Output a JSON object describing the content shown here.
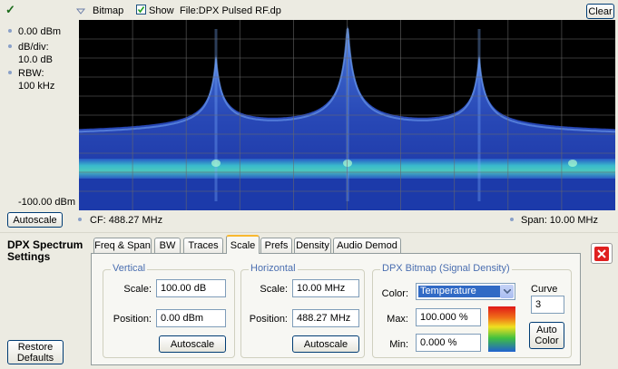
{
  "toolbar": {
    "check": "✓",
    "trace_menu": "Bitmap",
    "show": "Show",
    "file": "File:DPX Pulsed RF.dp",
    "clear": "Clear"
  },
  "display": {
    "ref_level": "0.00 dBm",
    "db_div_label": "dB/div:",
    "db_div": "10.0 dB",
    "rbw_label": "RBW:",
    "rbw": "100 kHz",
    "bottom_level": "-100.00 dBm",
    "autoscale": "Autoscale",
    "cf": "CF: 488.27 MHz",
    "span": "Span: 10.00 MHz"
  },
  "settings": {
    "title": "DPX Spectrum Settings",
    "tabs": [
      "Freq & Span",
      "BW",
      "Traces",
      "Scale",
      "Prefs",
      "Density",
      "Audio Demod"
    ],
    "restore": "Restore Defaults",
    "vertical": {
      "title": "Vertical",
      "scale_label": "Scale:",
      "scale": "100.00 dB",
      "position_label": "Position:",
      "position": "0.00 dBm",
      "autoscale": "Autoscale"
    },
    "horizontal": {
      "title": "Horizontal",
      "scale_label": "Scale:",
      "scale": "10.00 MHz",
      "position_label": "Position:",
      "position": "488.27 MHz",
      "autoscale": "Autoscale"
    },
    "bitmap": {
      "title": "DPX Bitmap (Signal Density)",
      "color_label": "Color:",
      "color": "Temperature",
      "max_label": "Max:",
      "max": "100.000 %",
      "min_label": "Min:",
      "min": "0.000 %",
      "curve_label": "Curve",
      "curve": "3",
      "auto_color": "Auto Color"
    }
  }
}
